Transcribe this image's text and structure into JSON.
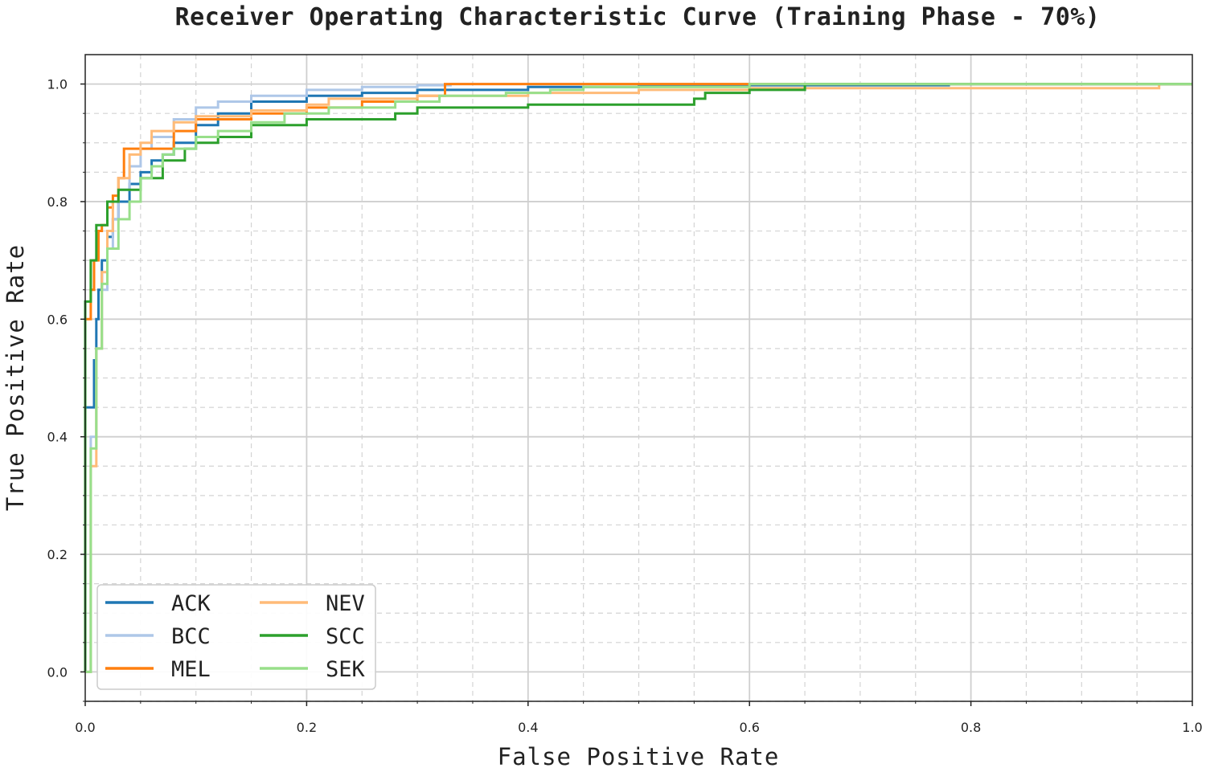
{
  "chart_data": {
    "type": "line",
    "title": "Receiver Operating Characteristic Curve (Training Phase - 70%)",
    "xlabel": "False Positive Rate",
    "ylabel": "True Positive Rate",
    "xlim": [
      0.0,
      1.0
    ],
    "ylim": [
      -0.05,
      1.05
    ],
    "x_ticks": [
      "0.0",
      "0.2",
      "0.4",
      "0.6",
      "0.8",
      "1.0"
    ],
    "y_ticks": [
      "0.0",
      "0.2",
      "0.4",
      "0.6",
      "0.8",
      "1.0"
    ],
    "grid": true,
    "legend_position": "lower-left",
    "series": [
      {
        "name": "ACK",
        "color": "#1f77b4",
        "x": [
          0.0,
          0.0,
          0.008,
          0.01,
          0.012,
          0.015,
          0.02,
          0.025,
          0.03,
          0.04,
          0.05,
          0.06,
          0.07,
          0.08,
          0.1,
          0.12,
          0.15,
          0.2,
          0.25,
          0.3,
          0.35,
          0.4,
          0.5,
          0.6,
          0.78,
          0.78,
          1.0
        ],
        "y": [
          0.0,
          0.45,
          0.53,
          0.6,
          0.65,
          0.7,
          0.74,
          0.77,
          0.8,
          0.83,
          0.85,
          0.87,
          0.88,
          0.9,
          0.93,
          0.95,
          0.97,
          0.98,
          0.985,
          0.99,
          0.99,
          0.995,
          0.997,
          0.998,
          0.998,
          1.0,
          1.0
        ]
      },
      {
        "name": "BCC",
        "color": "#aec7e8",
        "x": [
          0.0,
          0.005,
          0.01,
          0.015,
          0.02,
          0.025,
          0.03,
          0.04,
          0.05,
          0.06,
          0.08,
          0.1,
          0.12,
          0.15,
          0.2,
          0.25,
          0.3,
          0.33,
          0.4,
          0.6,
          1.0
        ],
        "y": [
          0.0,
          0.4,
          0.55,
          0.65,
          0.72,
          0.77,
          0.82,
          0.86,
          0.89,
          0.91,
          0.94,
          0.96,
          0.97,
          0.98,
          0.99,
          0.995,
          0.998,
          1.0,
          1.0,
          1.0,
          1.0
        ]
      },
      {
        "name": "MEL",
        "color": "#ff7f0e",
        "x": [
          0.0,
          0.0,
          0.005,
          0.008,
          0.012,
          0.015,
          0.02,
          0.025,
          0.03,
          0.035,
          0.05,
          0.07,
          0.08,
          0.1,
          0.15,
          0.2,
          0.25,
          0.3,
          0.325,
          0.4,
          0.515,
          0.515,
          1.0
        ],
        "y": [
          0.0,
          0.6,
          0.65,
          0.7,
          0.75,
          0.76,
          0.79,
          0.81,
          0.84,
          0.89,
          0.89,
          0.89,
          0.92,
          0.94,
          0.95,
          0.96,
          0.97,
          0.98,
          1.0,
          1.0,
          1.0,
          1.0,
          1.0
        ]
      },
      {
        "name": "NEV",
        "color": "#ffbb78",
        "x": [
          0.0,
          0.005,
          0.01,
          0.015,
          0.02,
          0.025,
          0.03,
          0.04,
          0.05,
          0.06,
          0.08,
          0.1,
          0.15,
          0.2,
          0.22,
          0.3,
          0.4,
          0.5,
          0.6,
          0.97,
          0.97,
          1.0
        ],
        "y": [
          0.0,
          0.35,
          0.55,
          0.68,
          0.75,
          0.8,
          0.84,
          0.88,
          0.9,
          0.92,
          0.935,
          0.945,
          0.955,
          0.965,
          0.975,
          0.98,
          0.985,
          0.99,
          0.993,
          0.995,
          1.0,
          1.0
        ]
      },
      {
        "name": "SCC",
        "color": "#2ca02c",
        "x": [
          0.0,
          0.0,
          0.005,
          0.01,
          0.02,
          0.03,
          0.04,
          0.05,
          0.07,
          0.09,
          0.1,
          0.12,
          0.15,
          0.2,
          0.25,
          0.28,
          0.3,
          0.35,
          0.4,
          0.45,
          0.5,
          0.55,
          0.56,
          0.6,
          0.64,
          0.65,
          0.8,
          1.0
        ],
        "y": [
          0.0,
          0.63,
          0.7,
          0.76,
          0.8,
          0.82,
          0.82,
          0.84,
          0.87,
          0.89,
          0.9,
          0.91,
          0.93,
          0.94,
          0.94,
          0.95,
          0.96,
          0.96,
          0.965,
          0.965,
          0.965,
          0.975,
          0.985,
          0.99,
          0.99,
          1.0,
          1.0,
          1.0
        ]
      },
      {
        "name": "SEK",
        "color": "#98df8a",
        "x": [
          0.0,
          0.005,
          0.01,
          0.015,
          0.02,
          0.03,
          0.04,
          0.05,
          0.06,
          0.07,
          0.08,
          0.1,
          0.12,
          0.15,
          0.18,
          0.22,
          0.28,
          0.32,
          0.38,
          0.42,
          0.45,
          0.6,
          1.0
        ],
        "y": [
          0.0,
          0.38,
          0.55,
          0.66,
          0.72,
          0.77,
          0.8,
          0.84,
          0.86,
          0.88,
          0.89,
          0.91,
          0.92,
          0.935,
          0.95,
          0.96,
          0.97,
          0.98,
          0.985,
          0.99,
          0.995,
          1.0,
          1.0
        ]
      }
    ]
  }
}
